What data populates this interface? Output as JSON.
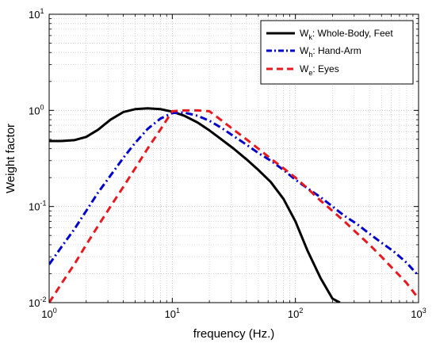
{
  "chart_data": {
    "type": "line",
    "xscale": "log",
    "yscale": "log",
    "xlim": [
      1,
      1000
    ],
    "ylim": [
      0.01,
      10
    ],
    "xlabel": "frequency (Hz.)",
    "ylabel": "Weight factor",
    "grid": "major and minor",
    "legend_position": "top-right",
    "x_ticks": [
      {
        "value": 1,
        "base": "10",
        "exp": "0"
      },
      {
        "value": 10,
        "base": "10",
        "exp": "1"
      },
      {
        "value": 100,
        "base": "10",
        "exp": "2"
      },
      {
        "value": 1000,
        "base": "10",
        "exp": "3"
      }
    ],
    "y_ticks": [
      {
        "value": 0.01,
        "base": "10",
        "exp": "-2"
      },
      {
        "value": 0.1,
        "base": "10",
        "exp": "-1"
      },
      {
        "value": 1,
        "base": "10",
        "exp": "0"
      },
      {
        "value": 10,
        "base": "10",
        "exp": "1"
      }
    ],
    "series": [
      {
        "name": "W",
        "subscript": "k",
        "description": ": Whole-Body, Feet",
        "color": "#000000",
        "dash": "solid",
        "x": [
          1,
          1.26,
          1.6,
          2,
          2.5,
          3.15,
          4,
          5,
          6.3,
          8,
          10,
          12.5,
          16,
          20,
          25,
          31.5,
          40,
          50,
          63,
          80,
          100,
          125,
          160,
          200,
          230
        ],
        "y": [
          0.48,
          0.48,
          0.49,
          0.53,
          0.63,
          0.8,
          0.96,
          1.03,
          1.05,
          1.03,
          0.97,
          0.88,
          0.75,
          0.62,
          0.5,
          0.4,
          0.31,
          0.24,
          0.18,
          0.12,
          0.07,
          0.035,
          0.018,
          0.011,
          0.01
        ]
      },
      {
        "name": "W",
        "subscript": "h",
        "description": ": Hand-Arm",
        "color": "#0000cc",
        "dash": "dash-dot",
        "x": [
          1,
          1.26,
          1.6,
          2,
          2.5,
          3.15,
          4,
          5,
          6.3,
          8,
          10,
          12.5,
          16,
          20,
          25,
          31.5,
          40,
          50,
          63,
          80,
          100,
          125,
          160,
          200,
          250,
          315,
          400,
          500,
          630,
          800,
          1000
        ],
        "y": [
          0.025,
          0.038,
          0.058,
          0.09,
          0.14,
          0.21,
          0.32,
          0.46,
          0.64,
          0.82,
          0.94,
          0.95,
          0.88,
          0.78,
          0.66,
          0.54,
          0.44,
          0.36,
          0.3,
          0.24,
          0.19,
          0.155,
          0.125,
          0.1,
          0.08,
          0.066,
          0.052,
          0.042,
          0.034,
          0.026,
          0.019
        ]
      },
      {
        "name": "W",
        "subscript": "e",
        "description": ": Eyes",
        "color": "#e8191e",
        "dash": "dashed",
        "x": [
          1,
          1.26,
          1.6,
          2,
          2.5,
          3.15,
          4,
          5,
          6.3,
          8,
          10,
          12.5,
          16,
          20,
          25,
          31.5,
          40,
          50,
          63,
          80,
          100,
          125,
          160,
          200,
          250,
          315,
          400,
          500,
          630,
          800,
          1000
        ],
        "y": [
          0.01,
          0.0158,
          0.025,
          0.04,
          0.063,
          0.1,
          0.16,
          0.25,
          0.4,
          0.63,
          0.98,
          1.0,
          1.0,
          0.98,
          0.79,
          0.63,
          0.5,
          0.4,
          0.315,
          0.25,
          0.2,
          0.155,
          0.115,
          0.09,
          0.07,
          0.053,
          0.04,
          0.03,
          0.022,
          0.016,
          0.011
        ]
      }
    ]
  }
}
